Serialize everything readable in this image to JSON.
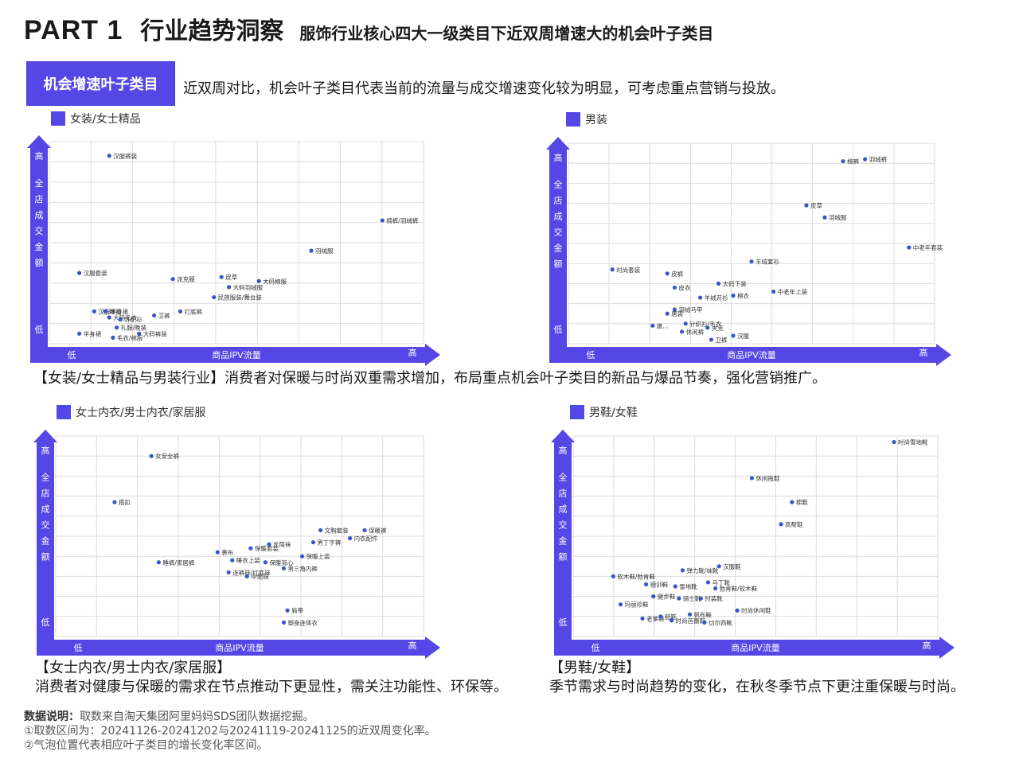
{
  "header": {
    "part": "PART 1",
    "title": "行业趋势洞察",
    "subtitle": "服饰行业核心四大一级类目下近双周增速大的机会叶子类目"
  },
  "badge": "机会增速叶子类目",
  "intro": "近双周对比，机会叶子类目代表当前的流量与成交增速变化较为明显，可考虑重点营销与投放。",
  "axis": {
    "y_title": "全店成交金额",
    "x_title": "商品IPV流量",
    "high": "高",
    "low": "低"
  },
  "captions": {
    "top": "【女装/女士精品与男装行业】消费者对保暖与时尚双重需求增加，布局重点机会叶子类目的新品与爆品节奏，强化营销推广。",
    "bottom_left_1": "【女士内衣/男士内衣/家居服】",
    "bottom_left_2": "消费者对健康与保暖的需求在节点推动下更显性，需关注功能性、环保等。",
    "bottom_right_1": "【男鞋/女鞋】",
    "bottom_right_2": "季节需求与时尚趋势的变化，在秋冬季节点下更注重保暖与时尚。"
  },
  "footer": {
    "label": "数据说明：",
    "line1": "取数来自淘天集团阿里妈妈SDS团队数据挖掘。",
    "line2": "①取数区间为：20241126-20241202与20241119-20241125的近双周变化率。",
    "line3": "②气泡位置代表相应叶子类目的增长变化率区间。"
  },
  "colors": {
    "accent": "#5546e6",
    "point": "#3a55c8",
    "grid": "#dcdcdc"
  },
  "chart_data": [
    {
      "type": "scatter",
      "title": "女装/女士精品",
      "xlabel": "商品IPV流量",
      "ylabel": "全店成交金额",
      "xlim": [
        0,
        100
      ],
      "ylim": [
        0,
        100
      ],
      "grid": true,
      "points": [
        {
          "label": "汉服裤装",
          "x": 16,
          "y": 93
        },
        {
          "label": "棉裤/羽绒裤",
          "x": 89,
          "y": 61
        },
        {
          "label": "羽绒服",
          "x": 70,
          "y": 46
        },
        {
          "label": "汉服套装",
          "x": 8,
          "y": 35
        },
        {
          "label": "派克服",
          "x": 33,
          "y": 32
        },
        {
          "label": "皮草",
          "x": 46,
          "y": 33
        },
        {
          "label": "大码棉服",
          "x": 56,
          "y": 31
        },
        {
          "label": "大码羽绒服",
          "x": 48,
          "y": 28
        },
        {
          "label": "民族服装/舞台装",
          "x": 44,
          "y": 23
        },
        {
          "label": "打底裤",
          "x": 35,
          "y": 16
        },
        {
          "label": "卫裤",
          "x": 28,
          "y": 14
        },
        {
          "label": "汉服半身裙",
          "x": 12,
          "y": 16
        },
        {
          "label": "睡裙",
          "x": 15,
          "y": 16
        },
        {
          "label": "大码毛衣",
          "x": 16,
          "y": 13
        },
        {
          "label": "针织衫",
          "x": 19,
          "y": 12
        },
        {
          "label": "礼服/晚装",
          "x": 18,
          "y": 8
        },
        {
          "label": "半身裙",
          "x": 8,
          "y": 5
        },
        {
          "label": "大码裤装",
          "x": 24,
          "y": 5
        },
        {
          "label": "毛衣/棉服",
          "x": 17,
          "y": 3
        }
      ]
    },
    {
      "type": "scatter",
      "title": "男装",
      "xlabel": "商品IPV流量",
      "ylabel": "全店成交金额",
      "xlim": [
        0,
        100
      ],
      "ylim": [
        0,
        100
      ],
      "grid": true,
      "points": [
        {
          "label": "棉裤",
          "x": 75,
          "y": 91
        },
        {
          "label": "羽绒裤",
          "x": 81,
          "y": 92
        },
        {
          "label": "皮草",
          "x": 65,
          "y": 69
        },
        {
          "label": "羽绒服",
          "x": 70,
          "y": 63
        },
        {
          "label": "中老年套装",
          "x": 93,
          "y": 48
        },
        {
          "label": "羊绒套衫",
          "x": 50,
          "y": 41
        },
        {
          "label": "时尚套装",
          "x": 12,
          "y": 37
        },
        {
          "label": "皮裤",
          "x": 27,
          "y": 35
        },
        {
          "label": "大码下装",
          "x": 41,
          "y": 30
        },
        {
          "label": "皮衣",
          "x": 29,
          "y": 28
        },
        {
          "label": "中老年上装",
          "x": 56,
          "y": 26
        },
        {
          "label": "棉衣",
          "x": 45,
          "y": 24
        },
        {
          "label": "羊绒开衫",
          "x": 36,
          "y": 23
        },
        {
          "label": "羽绒马甲",
          "x": 29,
          "y": 17
        },
        {
          "label": "唐装",
          "x": 27,
          "y": 15
        },
        {
          "label": "针织衫/毛衣",
          "x": 32,
          "y": 10
        },
        {
          "label": "休闲裤",
          "x": 31,
          "y": 6
        },
        {
          "label": "夹克",
          "x": 38,
          "y": 8
        },
        {
          "label": "汉服",
          "x": 45,
          "y": 4
        },
        {
          "label": "卫裤",
          "x": 39,
          "y": 2
        },
        {
          "label": "唐...",
          "x": 23,
          "y": 9
        }
      ]
    },
    {
      "type": "scatter",
      "title": "女士内衣/男士内衣/家居服",
      "xlabel": "商品IPV流量",
      "ylabel": "全店成交金额",
      "xlim": [
        0,
        100
      ],
      "ylim": [
        0,
        100
      ],
      "grid": true,
      "points": [
        {
          "label": "女安全裤",
          "x": 26,
          "y": 90
        },
        {
          "label": "搭扣",
          "x": 16,
          "y": 67
        },
        {
          "label": "睡裤/家居裤",
          "x": 28,
          "y": 37
        },
        {
          "label": "文胸套装",
          "x": 72,
          "y": 53
        },
        {
          "label": "保暖裤",
          "x": 84,
          "y": 53
        },
        {
          "label": "内衣配件",
          "x": 80,
          "y": 49
        },
        {
          "label": "男丁字裤",
          "x": 70,
          "y": 47
        },
        {
          "label": "长筒袜",
          "x": 58,
          "y": 46
        },
        {
          "label": "保暖套装",
          "x": 53,
          "y": 44
        },
        {
          "label": "裹布",
          "x": 44,
          "y": 42
        },
        {
          "label": "保暖上装",
          "x": 67,
          "y": 40
        },
        {
          "label": "睡衣上装",
          "x": 48,
          "y": 38
        },
        {
          "label": "保暖背心",
          "x": 57,
          "y": 37
        },
        {
          "label": "男三角内裤",
          "x": 62,
          "y": 34
        },
        {
          "label": "连裤袜/打底袜",
          "x": 47,
          "y": 32
        },
        {
          "label": "中筒袜",
          "x": 52,
          "y": 30
        },
        {
          "label": "肩带",
          "x": 63,
          "y": 13
        },
        {
          "label": "塑身连体衣",
          "x": 62,
          "y": 7
        }
      ]
    },
    {
      "type": "scatter",
      "title": "男鞋/女鞋",
      "xlabel": "商品IPV流量",
      "ylabel": "全店成交金额",
      "xlim": [
        0,
        100
      ],
      "ylim": [
        0,
        100
      ],
      "grid": true,
      "points": [
        {
          "label": "时尚雪地靴",
          "x": 88,
          "y": 97
        },
        {
          "label": "休闲拖鞋",
          "x": 49,
          "y": 79
        },
        {
          "label": "棉鞋",
          "x": 60,
          "y": 67
        },
        {
          "label": "高帮鞋",
          "x": 57,
          "y": 56
        },
        {
          "label": "汉服鞋",
          "x": 40,
          "y": 35
        },
        {
          "label": "弹力靴/袜靴",
          "x": 30,
          "y": 33
        },
        {
          "label": "软木鞋/勃肯鞋",
          "x": 11,
          "y": 30
        },
        {
          "label": "德训鞋",
          "x": 20,
          "y": 26
        },
        {
          "label": "雪地靴",
          "x": 28,
          "y": 25
        },
        {
          "label": "马丁靴",
          "x": 37,
          "y": 27
        },
        {
          "label": "勃肯鞋/软木鞋",
          "x": 39,
          "y": 24
        },
        {
          "label": "健步鞋",
          "x": 22,
          "y": 20
        },
        {
          "label": "骑士靴",
          "x": 29,
          "y": 19
        },
        {
          "label": "时装靴",
          "x": 35,
          "y": 19
        },
        {
          "label": "玛丽珍鞋",
          "x": 13,
          "y": 16
        },
        {
          "label": "时尚休闲鞋",
          "x": 45,
          "y": 13
        },
        {
          "label": "老爹鞋",
          "x": 19,
          "y": 9
        },
        {
          "label": "船鞋",
          "x": 24,
          "y": 10
        },
        {
          "label": "时尚芭蕾鞋",
          "x": 27,
          "y": 8
        },
        {
          "label": "帆布鞋",
          "x": 32,
          "y": 11
        },
        {
          "label": "切尔西靴",
          "x": 36,
          "y": 7
        }
      ]
    }
  ]
}
